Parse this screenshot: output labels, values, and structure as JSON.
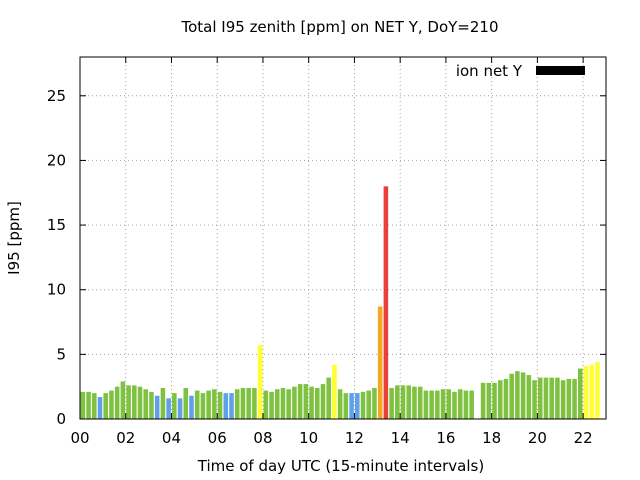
{
  "chart_data": {
    "type": "bar",
    "title": "Total I95 zenith [ppm] on NET Y, DoY=210",
    "xlabel": "Time of day UTC (15-minute intervals)",
    "ylabel": "I95 [ppm]",
    "xlim": [
      0,
      23
    ],
    "ylim": [
      0,
      28
    ],
    "x_ticks": [
      "00",
      "02",
      "04",
      "06",
      "08",
      "10",
      "12",
      "14",
      "16",
      "18",
      "20",
      "22"
    ],
    "x_tick_values": [
      0,
      2,
      4,
      6,
      8,
      10,
      12,
      14,
      16,
      18,
      20,
      22
    ],
    "y_ticks": [
      0,
      5,
      10,
      15,
      20,
      25
    ],
    "grid": true,
    "legend": {
      "position": "top-right",
      "entries": [
        {
          "label": "ion net Y",
          "color": "#000000"
        }
      ]
    },
    "category_colors": {
      "green": "#7fc241",
      "blue": "#5fa0e8",
      "yellow": "#ffff33",
      "orange": "#f5a623",
      "red": "#e8413a"
    },
    "series": [
      {
        "name": "ion net Y",
        "bar_interval_hours": 0.25,
        "values": [
          2.1,
          2.1,
          2.0,
          1.7,
          2.0,
          2.2,
          2.5,
          2.9,
          2.6,
          2.6,
          2.5,
          2.3,
          2.1,
          1.8,
          2.4,
          1.6,
          2.0,
          1.6,
          2.4,
          1.8,
          2.2,
          2.0,
          2.2,
          2.3,
          2.1,
          2.0,
          2.0,
          2.3,
          2.4,
          2.4,
          2.4,
          5.7,
          2.2,
          2.1,
          2.3,
          2.4,
          2.3,
          2.5,
          2.7,
          2.7,
          2.5,
          2.4,
          2.7,
          3.2,
          4.2,
          2.3,
          2.0,
          2.0,
          2.0,
          2.1,
          2.2,
          2.4,
          8.7,
          18.0,
          2.4,
          2.6,
          2.6,
          2.6,
          2.5,
          2.5,
          2.2,
          2.2,
          2.2,
          2.3,
          2.3,
          2.1,
          2.3,
          2.2,
          2.2,
          null,
          2.8,
          2.8,
          2.8,
          3.0,
          3.1,
          3.5,
          3.7,
          3.6,
          3.4,
          3.0,
          3.2,
          3.2,
          3.2,
          3.2,
          3.0,
          3.1,
          3.1,
          3.9,
          4.1,
          4.2,
          4.4
        ],
        "colors": [
          "green",
          "green",
          "green",
          "blue",
          "green",
          "green",
          "green",
          "green",
          "green",
          "green",
          "green",
          "green",
          "green",
          "blue",
          "green",
          "blue",
          "green",
          "blue",
          "green",
          "blue",
          "green",
          "green",
          "green",
          "green",
          "green",
          "blue",
          "blue",
          "green",
          "green",
          "green",
          "green",
          "yellow",
          "green",
          "green",
          "green",
          "green",
          "green",
          "green",
          "green",
          "green",
          "green",
          "green",
          "green",
          "green",
          "yellow",
          "green",
          "green",
          "blue",
          "blue",
          "green",
          "green",
          "green",
          "orange",
          "red",
          "green",
          "green",
          "green",
          "green",
          "green",
          "green",
          "green",
          "green",
          "green",
          "green",
          "green",
          "green",
          "green",
          "green",
          "green",
          null,
          "green",
          "green",
          "green",
          "green",
          "green",
          "green",
          "green",
          "green",
          "green",
          "green",
          "green",
          "green",
          "green",
          "green",
          "green",
          "green",
          "green",
          "green",
          "yellow",
          "yellow",
          "yellow"
        ]
      }
    ]
  }
}
